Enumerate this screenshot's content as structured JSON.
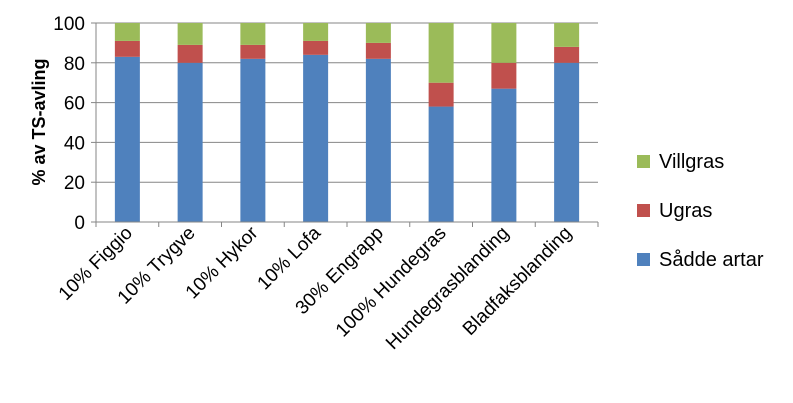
{
  "chart_data": {
    "type": "bar",
    "stacked": true,
    "categories": [
      "10% Figgio",
      "10% Trygve",
      "10% Hykor",
      "10% Lofa",
      "30% Engrapp",
      "100% Hundegras",
      "Hundegrasblanding",
      "Bladfaksblanding"
    ],
    "series": [
      {
        "name": "Sådde artar",
        "color": "#4f81bd",
        "values": [
          83,
          80,
          82,
          84,
          82,
          58,
          67,
          80
        ]
      },
      {
        "name": "Ugras",
        "color": "#c0504d",
        "values": [
          8,
          9,
          7,
          7,
          8,
          12,
          13,
          8
        ]
      },
      {
        "name": "Villgras",
        "color": "#9bbb59",
        "values": [
          9,
          11,
          11,
          9,
          10,
          30,
          20,
          12
        ]
      }
    ],
    "ylabel": "% av TS-avling",
    "xlabel": "",
    "ylim": [
      0,
      100
    ],
    "yticks": [
      0,
      20,
      40,
      60,
      80,
      100
    ],
    "grid": true,
    "legend_position": "right"
  }
}
